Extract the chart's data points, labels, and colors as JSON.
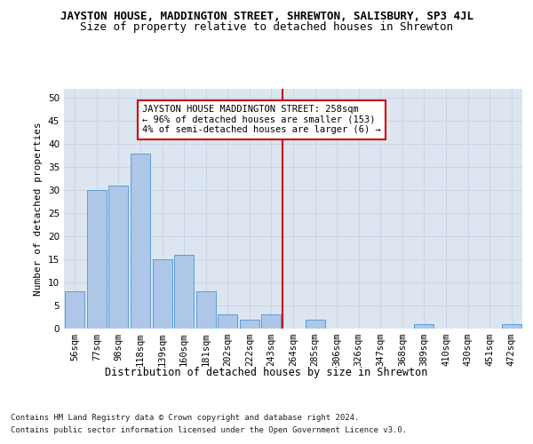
{
  "title": "JAYSTON HOUSE, MADDINGTON STREET, SHREWTON, SALISBURY, SP3 4JL",
  "subtitle": "Size of property relative to detached houses in Shrewton",
  "xlabel": "Distribution of detached houses by size in Shrewton",
  "ylabel": "Number of detached properties",
  "categories": [
    "56sqm",
    "77sqm",
    "98sqm",
    "118sqm",
    "139sqm",
    "160sqm",
    "181sqm",
    "202sqm",
    "222sqm",
    "243sqm",
    "264sqm",
    "285sqm",
    "306sqm",
    "326sqm",
    "347sqm",
    "368sqm",
    "389sqm",
    "410sqm",
    "430sqm",
    "451sqm",
    "472sqm"
  ],
  "values": [
    8,
    30,
    31,
    38,
    15,
    16,
    8,
    3,
    2,
    3,
    0,
    2,
    0,
    0,
    0,
    0,
    1,
    0,
    0,
    0,
    1
  ],
  "bar_color": "#aec6e8",
  "bar_edge_color": "#5a9fd4",
  "grid_color": "#c8d4e8",
  "bg_color": "#dde5f0",
  "vline_color": "#cc0000",
  "annotation_text": "JAYSTON HOUSE MADDINGTON STREET: 258sqm\n← 96% of detached houses are smaller (153)\n4% of semi-detached houses are larger (6) →",
  "annotation_box_color": "#cc0000",
  "ylim": [
    0,
    52
  ],
  "yticks": [
    0,
    5,
    10,
    15,
    20,
    25,
    30,
    35,
    40,
    45,
    50
  ],
  "footer_line1": "Contains HM Land Registry data © Crown copyright and database right 2024.",
  "footer_line2": "Contains public sector information licensed under the Open Government Licence v3.0.",
  "title_fontsize": 9,
  "subtitle_fontsize": 9,
  "xlabel_fontsize": 8.5,
  "ylabel_fontsize": 8,
  "tick_fontsize": 7.5,
  "annotation_fontsize": 7.5,
  "footer_fontsize": 6.5
}
